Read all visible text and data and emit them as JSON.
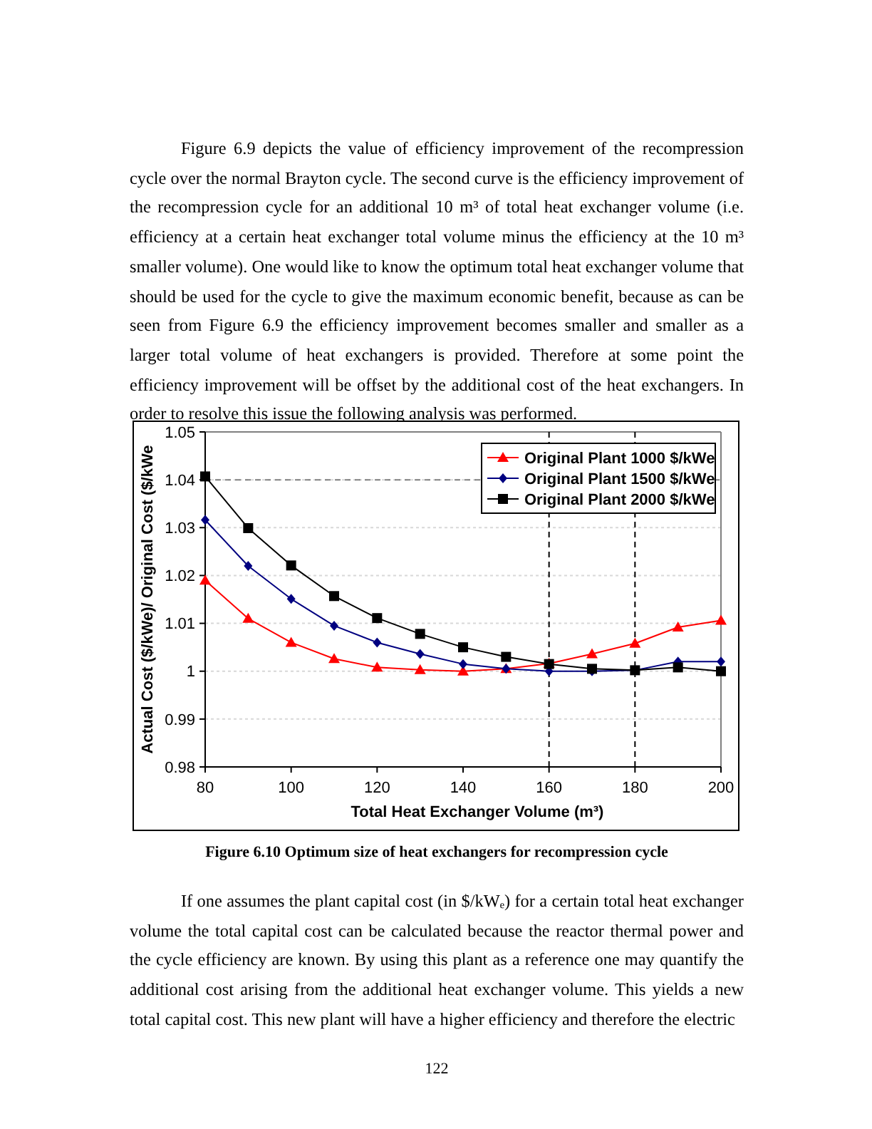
{
  "chart_data": {
    "type": "line",
    "xlabel": "Total Heat Exchanger Volume (m³)",
    "ylabel": "Actual Cost ($/kWe)/ Original Cost ($/kWe",
    "x": [
      80,
      90,
      100,
      110,
      120,
      130,
      140,
      150,
      160,
      170,
      180,
      190,
      200
    ],
    "series": [
      {
        "name": "Original Plant 1000 $/kWe",
        "color": "#ff0000",
        "marker": "triangle",
        "values": [
          1.019,
          1.011,
          1.006,
          1.0026,
          1.0008,
          1.0003,
          1.0,
          1.0005,
          1.0016,
          1.0036,
          1.0058,
          1.0092,
          1.0106
        ]
      },
      {
        "name": "Original Plant 1500 $/kWe",
        "color": "#000080",
        "marker": "diamond",
        "values": [
          1.0316,
          1.022,
          1.0151,
          1.0095,
          1.006,
          1.0036,
          1.0015,
          1.0005,
          1.0,
          1.0,
          1.0002,
          1.002,
          1.002
        ]
      },
      {
        "name": "Original Plant 2000 $/kWe",
        "color": "#000000",
        "marker": "square",
        "values": [
          1.0407,
          1.0299,
          1.0221,
          1.0157,
          1.0111,
          1.0078,
          1.005,
          1.003,
          1.0015,
          1.0005,
          1.0002,
          1.0008,
          1.0
        ]
      }
    ],
    "xlim": [
      80,
      200
    ],
    "xticks": [
      80,
      100,
      120,
      140,
      160,
      180,
      200
    ],
    "ylim": [
      0.98,
      1.05
    ],
    "yticks": [
      0.98,
      0.99,
      1,
      1.01,
      1.02,
      1.03,
      1.04,
      1.05
    ],
    "grid": "y",
    "legend": "top right",
    "ref_lines": [
      {
        "axis": "y",
        "value": 1.04,
        "color": "#808080",
        "line_style": "dashed"
      },
      {
        "axis": "x",
        "value": 160,
        "color": "#000000",
        "line_style": "dashed"
      },
      {
        "axis": "x",
        "value": 180,
        "color": "#000000",
        "line_style": "dashed"
      }
    ],
    "annotations": [
      "Figure 6.9 depicts the value of efficiency improvement of the recompression cycle over the normal Brayton cycle.  The second curve is the efficiency improvement of the recompression cycle for an additional 10 m³ of total heat exchanger volume (i.e. efficiency at a certain heat exchanger total volume minus the efficiency at the 10 m³ smaller volume).  One would like to know the optimum total heat exchanger volume that should be used for the cycle to give the maximum economic benefit, because as can be seen from Figure 6.9 the efficiency improvement becomes smaller and smaller as a larger total volume of heat exchangers is provided.  Therefore at some point the efficiency improvement will be offset by the additional cost of the heat exchangers. In order to resolve this issue the following analysis was performed.",
      "Figure 6.10 Optimum size of heat exchangers for recompression cycle",
      "If one assumes the plant capital cost (in $/kWₑ) for a certain total heat exchanger volume the total capital cost can be calculated because the reactor thermal power and the cycle efficiency are known.  By using this plant as a reference one may quantify the additional cost arising from the additional heat exchanger volume.  This yields a new total capital cost. This new plant will have a higher efficiency and therefore the electric",
      "122"
    ]
  }
}
